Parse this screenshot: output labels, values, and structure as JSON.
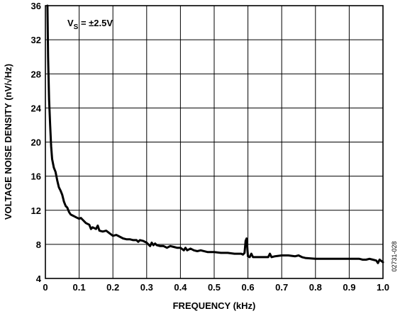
{
  "chart_data": {
    "type": "line",
    "xlabel": "FREQUENCY (kHz)",
    "ylabel": "VOLTAGE NOISE DENSITY (nV/√Hz)",
    "xlim": [
      0,
      1.0
    ],
    "ylim": [
      4,
      36
    ],
    "x_ticks": [
      "0",
      "0.1",
      "0.2",
      "0.3",
      "0.4",
      "0.5",
      "0.6",
      "0.7",
      "0.8",
      "0.9",
      "1.0"
    ],
    "y_ticks": [
      "4",
      "8",
      "12",
      "16",
      "20",
      "24",
      "28",
      "32",
      "36"
    ],
    "grid": true,
    "annotation": {
      "main": "V",
      "sub": "S",
      "rest": " = ±2.5V"
    },
    "figure_id": "02731-028",
    "series": [
      {
        "x": [
          0.006,
          0.008,
          0.011,
          0.014,
          0.017,
          0.02,
          0.025,
          0.03,
          0.035,
          0.04,
          0.045,
          0.05,
          0.055,
          0.06,
          0.065,
          0.07,
          0.075,
          0.08,
          0.085,
          0.09,
          0.1,
          0.105,
          0.11,
          0.12,
          0.13,
          0.135,
          0.14,
          0.15,
          0.155,
          0.16,
          0.17,
          0.18,
          0.19,
          0.2,
          0.21,
          0.22,
          0.23,
          0.24,
          0.25,
          0.26,
          0.27,
          0.275,
          0.28,
          0.29,
          0.3,
          0.31,
          0.315,
          0.32,
          0.325,
          0.33,
          0.34,
          0.35,
          0.36,
          0.37,
          0.38,
          0.39,
          0.4,
          0.41,
          0.415,
          0.42,
          0.43,
          0.44,
          0.45,
          0.46,
          0.48,
          0.5,
          0.52,
          0.54,
          0.56,
          0.575,
          0.58,
          0.585,
          0.59,
          0.593,
          0.596,
          0.6,
          0.605,
          0.61,
          0.615,
          0.62,
          0.64,
          0.66,
          0.665,
          0.67,
          0.68,
          0.7,
          0.72,
          0.74,
          0.75,
          0.76,
          0.77,
          0.8,
          0.85,
          0.9,
          0.93,
          0.94,
          0.95,
          0.96,
          0.97,
          0.98,
          0.985,
          0.99,
          1.0
        ],
        "y": [
          36,
          30,
          25,
          22,
          19.5,
          18,
          17,
          16.5,
          15.5,
          14.7,
          14.3,
          13.8,
          13.0,
          12.5,
          12.3,
          11.8,
          11.5,
          11.4,
          11.3,
          11.2,
          11.0,
          11.1,
          10.9,
          10.5,
          10.3,
          9.8,
          10.0,
          9.8,
          10.2,
          9.6,
          9.5,
          9.6,
          9.3,
          9.0,
          9.1,
          8.9,
          8.7,
          8.6,
          8.6,
          8.5,
          8.5,
          8.3,
          8.5,
          8.4,
          8.2,
          7.8,
          8.2,
          7.9,
          8.1,
          7.9,
          7.8,
          7.8,
          7.6,
          7.8,
          7.7,
          7.6,
          7.6,
          7.3,
          7.6,
          7.3,
          7.5,
          7.3,
          7.2,
          7.3,
          7.1,
          7.1,
          7.0,
          7.0,
          6.9,
          6.9,
          6.9,
          6.8,
          7.0,
          8.4,
          8.7,
          6.6,
          6.5,
          6.9,
          6.5,
          6.5,
          6.5,
          6.5,
          6.9,
          6.5,
          6.6,
          6.7,
          6.7,
          6.6,
          6.7,
          6.5,
          6.4,
          6.3,
          6.3,
          6.3,
          6.3,
          6.2,
          6.2,
          6.3,
          6.2,
          6.1,
          5.8,
          6.2,
          5.9
        ]
      }
    ]
  }
}
